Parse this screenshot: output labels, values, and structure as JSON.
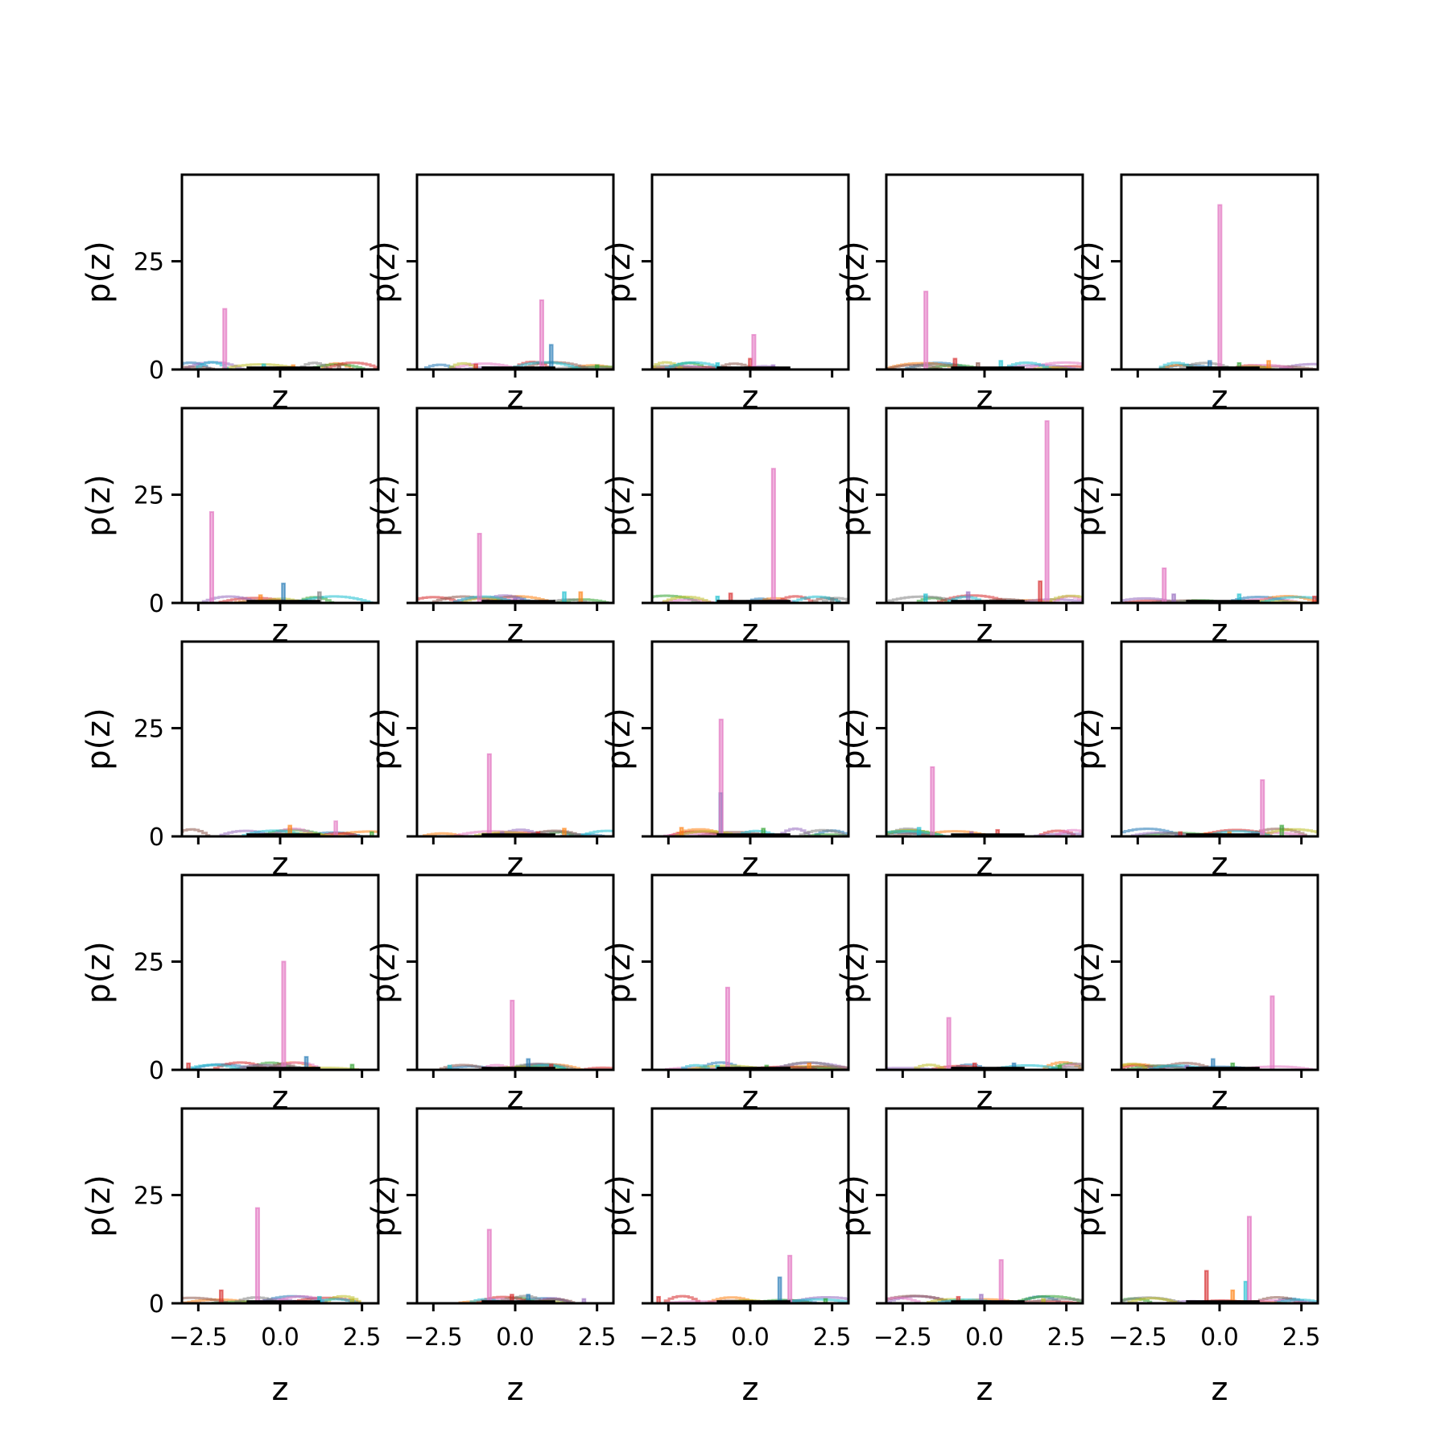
{
  "chart_data": {
    "type": "grid-of-histograms",
    "rows": 5,
    "cols": 5,
    "xlabel": "z",
    "ylabel": "p(z)",
    "xlim": [
      -3,
      3
    ],
    "ylim": [
      0,
      45
    ],
    "xticks": [
      -2.5,
      0.0,
      2.5
    ],
    "xtick_labels": [
      "−2.5",
      "0.0",
      "2.5"
    ],
    "yticks": [
      0,
      25
    ],
    "ytick_labels": [
      "0",
      "25"
    ],
    "series_colors": [
      "#1f77b4",
      "#ff7f0e",
      "#2ca02c",
      "#d62728",
      "#9467bd",
      "#8c564b",
      "#e377c2",
      "#7f7f7f",
      "#bcbd22",
      "#17becf"
    ],
    "panels": [
      {
        "peak": {
          "z": -1.7,
          "height": 14
        },
        "bumps": [
          {
            "z": -0.5,
            "h": 1.2,
            "c": 9
          },
          {
            "z": 0.4,
            "h": 1.0,
            "c": 1
          },
          {
            "z": 1.8,
            "h": 0.8,
            "c": 5
          }
        ]
      },
      {
        "peak": {
          "z": 0.8,
          "height": 16
        },
        "bumps": [
          {
            "z": 1.1,
            "h": 5.7,
            "c": 0
          },
          {
            "z": -1.2,
            "h": 1.2,
            "c": 3
          },
          {
            "z": 2.5,
            "h": 1.0,
            "c": 2
          }
        ]
      },
      {
        "peak": {
          "z": 0.1,
          "height": 8
        },
        "bumps": [
          {
            "z": 0.0,
            "h": 2.5,
            "c": 3
          },
          {
            "z": -1.0,
            "h": 1.5,
            "c": 9
          },
          {
            "z": 0.7,
            "h": 1.0,
            "c": 4
          }
        ]
      },
      {
        "peak": {
          "z": -1.8,
          "height": 18
        },
        "bumps": [
          {
            "z": -0.9,
            "h": 2.5,
            "c": 3
          },
          {
            "z": 0.5,
            "h": 2.0,
            "c": 9
          },
          {
            "z": -0.2,
            "h": 1.5,
            "c": 5
          }
        ]
      },
      {
        "peak": {
          "z": 0.0,
          "height": 38
        },
        "bumps": [
          {
            "z": -0.3,
            "h": 2.0,
            "c": 0
          },
          {
            "z": 1.5,
            "h": 2.0,
            "c": 1
          },
          {
            "z": 0.6,
            "h": 1.5,
            "c": 2
          }
        ]
      },
      {
        "peak": {
          "z": -2.1,
          "height": 21
        },
        "bumps": [
          {
            "z": 0.1,
            "h": 4.5,
            "c": 0
          },
          {
            "z": -0.6,
            "h": 1.8,
            "c": 1
          },
          {
            "z": 1.2,
            "h": 2.5,
            "c": 7
          }
        ]
      },
      {
        "peak": {
          "z": -1.1,
          "height": 16
        },
        "bumps": [
          {
            "z": 1.5,
            "h": 2.5,
            "c": 9
          },
          {
            "z": 2.0,
            "h": 2.5,
            "c": 1
          },
          {
            "z": 0.0,
            "h": 1.0,
            "c": 4
          }
        ]
      },
      {
        "peak": {
          "z": 0.7,
          "height": 31
        },
        "bumps": [
          {
            "z": -0.6,
            "h": 2.2,
            "c": 3
          },
          {
            "z": -1.0,
            "h": 1.5,
            "c": 9
          },
          {
            "z": 2.5,
            "h": 1.0,
            "c": 7
          }
        ]
      },
      {
        "peak": {
          "z": 1.9,
          "height": 42
        },
        "bumps": [
          {
            "z": 1.7,
            "h": 5.0,
            "c": 3
          },
          {
            "z": -0.5,
            "h": 2.5,
            "c": 4
          },
          {
            "z": -1.8,
            "h": 2.0,
            "c": 9
          }
        ]
      },
      {
        "peak": {
          "z": -1.7,
          "height": 8
        },
        "bumps": [
          {
            "z": -1.4,
            "h": 2.0,
            "c": 4
          },
          {
            "z": 0.6,
            "h": 2.0,
            "c": 9
          },
          {
            "z": 2.9,
            "h": 1.5,
            "c": 3
          }
        ]
      },
      {
        "peak": null,
        "bumps": [
          {
            "z": 1.7,
            "h": 3.5,
            "c": 6
          },
          {
            "z": 0.3,
            "h": 2.5,
            "c": 1
          },
          {
            "z": 2.8,
            "h": 1.0,
            "c": 2
          }
        ]
      },
      {
        "peak": {
          "z": -0.8,
          "height": 19
        },
        "bumps": [
          {
            "z": 1.5,
            "h": 1.8,
            "c": 1
          },
          {
            "z": -0.4,
            "h": 1.0,
            "c": 4
          },
          {
            "z": 0.7,
            "h": 1.0,
            "c": 3
          }
        ]
      },
      {
        "peak": {
          "z": -0.9,
          "height": 27
        },
        "bumps": [
          {
            "z": -0.9,
            "h": 10.0,
            "c": 0
          },
          {
            "z": -2.1,
            "h": 2.0,
            "c": 1
          },
          {
            "z": 0.4,
            "h": 1.8,
            "c": 2
          }
        ]
      },
      {
        "peak": {
          "z": -1.6,
          "height": 16
        },
        "bumps": [
          {
            "z": -2.0,
            "h": 2.0,
            "c": 9
          },
          {
            "z": 0.4,
            "h": 1.5,
            "c": 3
          },
          {
            "z": -0.4,
            "h": 1.0,
            "c": 4
          }
        ]
      },
      {
        "peak": {
          "z": 1.3,
          "height": 13
        },
        "bumps": [
          {
            "z": 1.9,
            "h": 2.5,
            "c": 2
          },
          {
            "z": 0.3,
            "h": 1.0,
            "c": 1
          },
          {
            "z": -1.2,
            "h": 1.0,
            "c": 3
          }
        ]
      },
      {
        "peak": {
          "z": 0.1,
          "height": 25
        },
        "bumps": [
          {
            "z": 0.8,
            "h": 3.0,
            "c": 0
          },
          {
            "z": -2.8,
            "h": 1.5,
            "c": 3
          },
          {
            "z": 2.2,
            "h": 1.2,
            "c": 2
          }
        ]
      },
      {
        "peak": {
          "z": -0.1,
          "height": 16
        },
        "bumps": [
          {
            "z": 0.4,
            "h": 2.5,
            "c": 0
          },
          {
            "z": -2.0,
            "h": 1.0,
            "c": 9
          },
          {
            "z": 1.1,
            "h": 1.2,
            "c": 3
          }
        ]
      },
      {
        "peak": {
          "z": -0.7,
          "height": 19
        },
        "bumps": [
          {
            "z": 1.8,
            "h": 1.5,
            "c": 1
          },
          {
            "z": -1.0,
            "h": 1.0,
            "c": 9
          },
          {
            "z": 0.5,
            "h": 1.0,
            "c": 2
          }
        ]
      },
      {
        "peak": {
          "z": -1.1,
          "height": 12
        },
        "bumps": [
          {
            "z": 0.9,
            "h": 1.5,
            "c": 0
          },
          {
            "z": -0.3,
            "h": 1.5,
            "c": 3
          },
          {
            "z": 2.3,
            "h": 1.0,
            "c": 2
          }
        ]
      },
      {
        "peak": {
          "z": 1.6,
          "height": 17
        },
        "bumps": [
          {
            "z": -0.2,
            "h": 2.5,
            "c": 0
          },
          {
            "z": 0.4,
            "h": 1.5,
            "c": 2
          },
          {
            "z": -1.0,
            "h": 1.0,
            "c": 4
          }
        ]
      },
      {
        "peak": {
          "z": -0.7,
          "height": 22
        },
        "bumps": [
          {
            "z": -1.8,
            "h": 3.0,
            "c": 3
          },
          {
            "z": 1.2,
            "h": 1.5,
            "c": 9
          },
          {
            "z": 2.2,
            "h": 1.0,
            "c": 8
          }
        ]
      },
      {
        "peak": {
          "z": -0.8,
          "height": 17
        },
        "bumps": [
          {
            "z": 0.4,
            "h": 2.0,
            "c": 0
          },
          {
            "z": -0.1,
            "h": 2.0,
            "c": 3
          },
          {
            "z": 2.1,
            "h": 1.0,
            "c": 4
          }
        ]
      },
      {
        "peak": {
          "z": 1.2,
          "height": 11
        },
        "bumps": [
          {
            "z": 0.9,
            "h": 6.0,
            "c": 0
          },
          {
            "z": -2.8,
            "h": 1.5,
            "c": 3
          },
          {
            "z": 2.3,
            "h": 1.0,
            "c": 2
          }
        ]
      },
      {
        "peak": {
          "z": 0.5,
          "height": 10
        },
        "bumps": [
          {
            "z": -0.1,
            "h": 2.0,
            "c": 4
          },
          {
            "z": -0.8,
            "h": 1.5,
            "c": 3
          },
          {
            "z": 1.8,
            "h": 1.0,
            "c": 8
          }
        ]
      },
      {
        "peak": {
          "z": 0.9,
          "height": 20
        },
        "bumps": [
          {
            "z": -0.4,
            "h": 7.5,
            "c": 3
          },
          {
            "z": 0.8,
            "h": 5.0,
            "c": 9
          },
          {
            "z": 0.4,
            "h": 3.0,
            "c": 1
          }
        ]
      }
    ]
  }
}
